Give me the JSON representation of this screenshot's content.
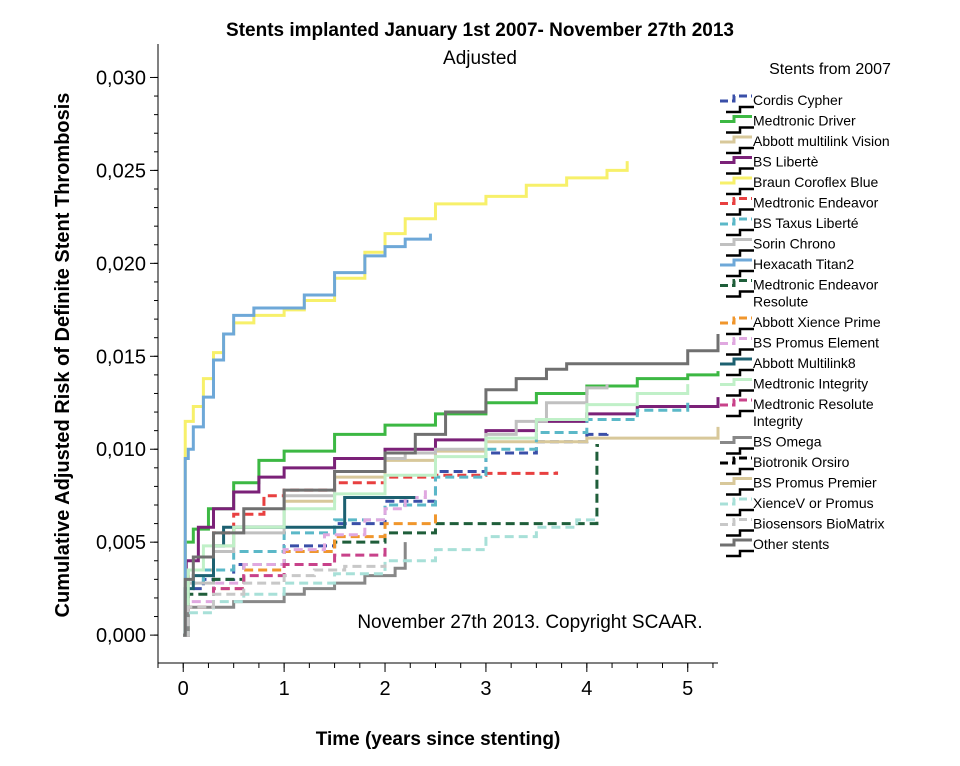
{
  "chart_data": {
    "type": "line",
    "title": "Stents implanted January 1st 2007- November 27th 2013",
    "subtitle": "Adjusted",
    "xlabel": "Time (years since stenting)",
    "ylabel": "Cumulative Adjusted Risk of Definite Stent Thrombosis",
    "xlim": [
      -0.25,
      5.3
    ],
    "ylim": [
      -0.0015,
      0.0318
    ],
    "x_ticks": [
      "0",
      "1",
      "2",
      "3",
      "4",
      "5"
    ],
    "y_ticks": [
      "0,000",
      "0,005",
      "0,010",
      "0,015",
      "0,020",
      "0,025",
      "0,030"
    ],
    "grid": false,
    "legend_title": "Stents from 2007",
    "legend_position": "right",
    "annotation": "November 27th 2013. Copyright SCAAR.",
    "series": [
      {
        "name": "Cordis Cypher",
        "color": "#3a4fa8",
        "dash": "dashed",
        "x": [
          0,
          0.05,
          0.2,
          0.5,
          1,
          1.5,
          2,
          2.5,
          3,
          3.5,
          4,
          4.2
        ],
        "y": [
          0,
          0.0025,
          0.003,
          0.0038,
          0.0048,
          0.006,
          0.0072,
          0.0088,
          0.0098,
          0.0104,
          0.0108,
          0.011
        ]
      },
      {
        "name": "Medtronic Driver",
        "color": "#3cb843",
        "dash": "solid",
        "x": [
          0,
          0.02,
          0.1,
          0.25,
          0.5,
          0.75,
          1,
          1.5,
          2,
          2.5,
          3,
          3.5,
          4,
          4.5,
          5,
          5.3
        ],
        "y": [
          0,
          0.005,
          0.0057,
          0.0068,
          0.0082,
          0.0094,
          0.0099,
          0.0108,
          0.0113,
          0.0119,
          0.0125,
          0.013,
          0.0134,
          0.0138,
          0.014,
          0.0142
        ]
      },
      {
        "name": "Abbott multilink Vision",
        "color": "#d8c89a",
        "dash": "solid",
        "x": [
          0,
          0.05,
          0.3,
          0.5,
          1,
          1.5,
          2,
          2.5,
          3,
          4,
          4.9,
          5.3
        ],
        "y": [
          0,
          0.0035,
          0.0048,
          0.0058,
          0.0072,
          0.0085,
          0.0094,
          0.0099,
          0.0104,
          0.0106,
          0.0106,
          0.0112
        ]
      },
      {
        "name": "BS Libertè",
        "color": "#7b2178",
        "dash": "solid",
        "x": [
          0,
          0.03,
          0.15,
          0.3,
          0.5,
          0.75,
          1,
          1.5,
          2,
          2.5,
          3,
          3.5,
          4,
          4.5,
          5.3
        ],
        "y": [
          0,
          0.004,
          0.0058,
          0.0068,
          0.0077,
          0.0085,
          0.009,
          0.0095,
          0.01,
          0.0105,
          0.011,
          0.0115,
          0.0119,
          0.0123,
          0.0128
        ]
      },
      {
        "name": "Braun Coroflex Blue",
        "color": "#f7f06a",
        "dash": "solid",
        "x": [
          0,
          0.02,
          0.1,
          0.2,
          0.3,
          0.4,
          0.5,
          0.7,
          1,
          1.2,
          1.5,
          1.8,
          2,
          2.2,
          2.5,
          3,
          3.4,
          3.8,
          4.2,
          4.4
        ],
        "y": [
          0,
          0.0115,
          0.0123,
          0.0138,
          0.0152,
          0.0162,
          0.0168,
          0.0172,
          0.0175,
          0.018,
          0.0192,
          0.0206,
          0.0216,
          0.0224,
          0.0232,
          0.0236,
          0.0242,
          0.0246,
          0.025,
          0.0255
        ]
      },
      {
        "name": "Medtronic Endeavor",
        "color": "#e84040",
        "dash": "dashed",
        "x": [
          0,
          0.05,
          0.3,
          0.5,
          0.8,
          1,
          1.5,
          2,
          2.5,
          3,
          3.7
        ],
        "y": [
          0,
          0.0035,
          0.0055,
          0.0065,
          0.0075,
          0.0078,
          0.0082,
          0.0085,
          0.0086,
          0.0087,
          0.0088
        ]
      },
      {
        "name": "BS Taxus Liberté",
        "color": "#5bb8c8",
        "dash": "dashed",
        "x": [
          0,
          0.05,
          0.2,
          0.5,
          1,
          1.5,
          2,
          2.5,
          3,
          3.5,
          4,
          4.5,
          5
        ],
        "y": [
          0,
          0.0028,
          0.0035,
          0.0045,
          0.0055,
          0.0062,
          0.007,
          0.0085,
          0.01,
          0.0109,
          0.0116,
          0.0121,
          0.0125
        ]
      },
      {
        "name": "Sorin Chrono",
        "color": "#c0c0c0",
        "dash": "solid",
        "x": [
          0,
          0.05,
          0.3,
          0.5,
          1,
          1.5,
          2,
          2.2,
          2.5,
          3,
          3.3,
          3.6,
          4.0,
          4.2
        ],
        "y": [
          0,
          0.0028,
          0.0045,
          0.0055,
          0.0075,
          0.0088,
          0.0095,
          0.0098,
          0.01,
          0.0108,
          0.0115,
          0.0125,
          0.0133,
          0.0135
        ]
      },
      {
        "name": "Hexacath Titan2",
        "color": "#6ea8d8",
        "dash": "solid",
        "x": [
          0,
          0.02,
          0.05,
          0.1,
          0.2,
          0.3,
          0.4,
          0.5,
          0.7,
          1,
          1.2,
          1.5,
          1.8,
          2,
          2.2,
          2.45
        ],
        "y": [
          0,
          0.0095,
          0.01,
          0.0112,
          0.0128,
          0.0148,
          0.0162,
          0.0172,
          0.0176,
          0.0176,
          0.0183,
          0.0195,
          0.0204,
          0.0209,
          0.0213,
          0.0216
        ]
      },
      {
        "name": "Medtronic Endeavor Resolute",
        "color": "#1f5e3a",
        "dash": "dashed",
        "x": [
          0,
          0.05,
          0.3,
          0.6,
          1,
          1.5,
          2,
          2.5,
          3,
          3.5,
          4.1,
          4.1,
          4.12
        ],
        "y": [
          0,
          0.0022,
          0.003,
          0.0038,
          0.0045,
          0.005,
          0.0055,
          0.006,
          0.006,
          0.006,
          0.006,
          0.0102,
          0.0102
        ]
      },
      {
        "name": "Abbott Xience Prime",
        "color": "#f0962c",
        "dash": "dashed",
        "x": [
          0,
          0.05,
          0.3,
          0.6,
          1,
          1.5,
          2,
          2.5
        ],
        "y": [
          0,
          0.0015,
          0.0025,
          0.0035,
          0.0045,
          0.0053,
          0.006,
          0.0065
        ]
      },
      {
        "name": "BS Promus Element",
        "color": "#e0a8e0",
        "dash": "dashed",
        "x": [
          0,
          0.05,
          0.3,
          0.6,
          1,
          1.4,
          1.8,
          2.0,
          2.2,
          2.4
        ],
        "y": [
          0,
          0.0018,
          0.0028,
          0.0038,
          0.0046,
          0.0054,
          0.0062,
          0.0068,
          0.0074,
          0.0078
        ]
      },
      {
        "name": "Abbott Multilink8",
        "color": "#1c6070",
        "dash": "solid",
        "x": [
          0,
          0.02,
          0.1,
          0.3,
          0.4,
          0.6,
          1,
          1.5,
          1.6,
          2.0,
          2.3
        ],
        "y": [
          0,
          0.0025,
          0.0032,
          0.0048,
          0.0058,
          0.0058,
          0.0058,
          0.0058,
          0.0074,
          0.0074,
          0.0074
        ]
      },
      {
        "name": "Medtronic Integrity",
        "color": "#c0f0c8",
        "dash": "solid",
        "x": [
          0,
          0.05,
          0.2,
          0.5,
          1,
          1.5,
          2,
          2.5,
          3,
          3.5,
          4,
          4.5,
          5
        ],
        "y": [
          0,
          0.0035,
          0.0048,
          0.0058,
          0.0068,
          0.0076,
          0.0086,
          0.0096,
          0.0106,
          0.0116,
          0.0124,
          0.013,
          0.0135
        ]
      },
      {
        "name": "Medtronic Resolute Integrity",
        "color": "#c8428a",
        "dash": "dashed",
        "x": [
          0,
          0.05,
          0.3,
          0.6,
          1,
          1.5,
          2
        ],
        "y": [
          0,
          0.0015,
          0.0025,
          0.0032,
          0.0038,
          0.0043,
          0.0048
        ]
      },
      {
        "name": "BS Omega",
        "color": "#888888",
        "dash": "solid",
        "x": [
          0,
          0.05,
          0.5,
          1,
          1.2,
          1.5,
          1.8,
          2.1,
          2.2
        ],
        "y": [
          0,
          0.0015,
          0.0018,
          0.0022,
          0.0025,
          0.0028,
          0.0032,
          0.0036,
          0.005
        ]
      },
      {
        "name": "Biotronik Orsiro",
        "color": "#000000",
        "dash": "dashed",
        "x": [],
        "y": []
      },
      {
        "name": "BS Promus Premier",
        "color": "#d8c89a",
        "dash": "solid",
        "x": [],
        "y": []
      },
      {
        "name": "XienceV or Promus",
        "color": "#a8e0d8",
        "dash": "dashed",
        "x": [
          0,
          0.05,
          0.3,
          0.6,
          1,
          1.5,
          2,
          2.5,
          3,
          3.5,
          3.9,
          4.1
        ],
        "y": [
          0,
          0.0012,
          0.0018,
          0.0022,
          0.0028,
          0.0033,
          0.004,
          0.0046,
          0.0053,
          0.0058,
          0.0062,
          0.0064
        ]
      },
      {
        "name": "Biosensors BioMatrix",
        "color": "#c8c8c8",
        "dash": "dashed",
        "x": [
          0,
          0.05,
          0.3,
          0.6,
          1,
          1.3,
          1.6,
          2.0
        ],
        "y": [
          0,
          0.0015,
          0.0022,
          0.0028,
          0.0032,
          0.0035,
          0.0037,
          0.0038
        ]
      },
      {
        "name": "Other stents",
        "color": "#707070",
        "dash": "solid",
        "x": [
          0,
          0.02,
          0.1,
          0.3,
          0.6,
          1,
          1.5,
          2,
          2.3,
          2.6,
          3,
          3.3,
          3.6,
          3.8,
          4.2,
          4.6,
          5.0,
          5.3
        ],
        "y": [
          0,
          0.003,
          0.0042,
          0.0055,
          0.0068,
          0.0078,
          0.0088,
          0.0098,
          0.0108,
          0.012,
          0.0132,
          0.0138,
          0.0143,
          0.0146,
          0.0146,
          0.0146,
          0.0153,
          0.0162
        ]
      }
    ],
    "legend_labels": [
      [
        "Cordis Cypher"
      ],
      [
        "Medtronic Driver"
      ],
      [
        "Abbott multilink Vision"
      ],
      [
        "BS Libertè"
      ],
      [
        "Braun Coroflex Blue"
      ],
      [
        "Medtronic Endeavor"
      ],
      [
        "BS Taxus Liberté"
      ],
      [
        "Sorin Chrono"
      ],
      [
        "Hexacath Titan2"
      ],
      [
        "Medtronic Endeavor",
        "Resolute"
      ],
      [
        "Abbott Xience Prime"
      ],
      [
        "BS Promus Element"
      ],
      [
        "Abbott Multilink8"
      ],
      [
        "Medtronic Integrity"
      ],
      [
        "Medtronic Resolute",
        "Integrity"
      ],
      [
        "BS Omega"
      ],
      [
        "Biotronik Orsiro"
      ],
      [
        "BS Promus Premier"
      ],
      [
        "XienceV or Promus"
      ],
      [
        "Biosensors BioMatrix"
      ],
      [
        "Other stents"
      ]
    ]
  }
}
